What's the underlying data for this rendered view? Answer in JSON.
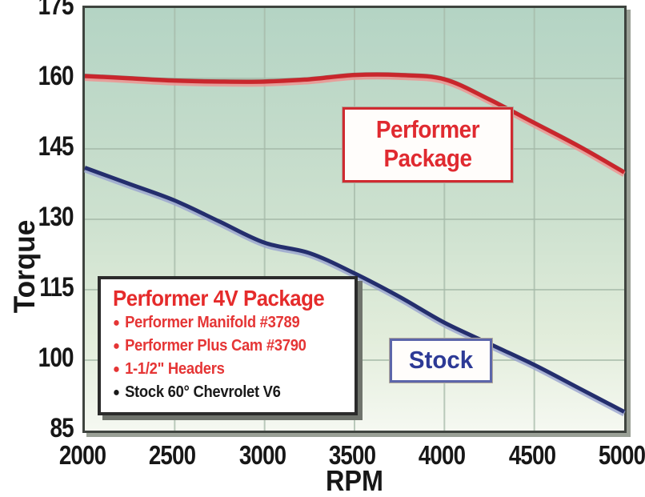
{
  "chart_data": {
    "type": "line",
    "title": "",
    "xlabel": "RPM",
    "ylabel": "Torque",
    "xlim": [
      2000,
      5000
    ],
    "ylim": [
      85,
      175
    ],
    "xticks": [
      "2000",
      "2500",
      "3000",
      "3500",
      "4000",
      "4500",
      "5000"
    ],
    "yticks": [
      "85",
      "100",
      "115",
      "130",
      "145",
      "160",
      "175"
    ],
    "grid": true,
    "legend_position": "none",
    "plot_background_top": "#b4d4c4",
    "plot_background_bottom": "#f5f8f1",
    "gridline_color": "#a6baa9",
    "series": [
      {
        "name": "Performer Package",
        "color": "#c9262c",
        "halo_color": "#f0908e",
        "dark_edge_color": "#8c2024",
        "x": [
          2000,
          2250,
          2500,
          2750,
          3000,
          3250,
          3500,
          3750,
          4000,
          4250,
          4500,
          4750,
          5000
        ],
        "values": [
          160.5,
          160,
          159.5,
          159.3,
          159.3,
          159.8,
          160.7,
          160.7,
          159.8,
          155.5,
          150.5,
          145.5,
          140
        ]
      },
      {
        "name": "Stock",
        "color": "#242e6d",
        "halo_color": "#99a2cf",
        "x": [
          2000,
          2250,
          2500,
          2750,
          3000,
          3250,
          3500,
          3750,
          4000,
          4250,
          4500,
          4750,
          5000
        ],
        "values": [
          141,
          137.5,
          134,
          129.5,
          125,
          122.8,
          118.5,
          113.5,
          108,
          103.5,
          99,
          94,
          89
        ]
      }
    ],
    "annotations": [
      {
        "line1": "Performer",
        "line2": "Package",
        "color": "#e02a30",
        "border": "#cf2b31"
      },
      {
        "line1": "Stock",
        "color": "#2d3a96",
        "border": "#5c66aa"
      }
    ]
  },
  "legend_box": {
    "title": "Performer 4V Package",
    "title_color": "#e52b2b",
    "items": [
      {
        "bullet": "●",
        "text": "Performer Manifold #3789",
        "color": "#e53535"
      },
      {
        "bullet": "●",
        "text": "Performer Plus Cam #3790",
        "color": "#e53535"
      },
      {
        "bullet": "●",
        "text": "1-1/2\" Headers",
        "color": "#e53535"
      },
      {
        "bullet": "●",
        "text": "Stock 60° Chevrolet V6",
        "color": "#1a1a1a"
      }
    ]
  },
  "axes": {
    "x_title": "RPM",
    "y_title": "Torque"
  }
}
